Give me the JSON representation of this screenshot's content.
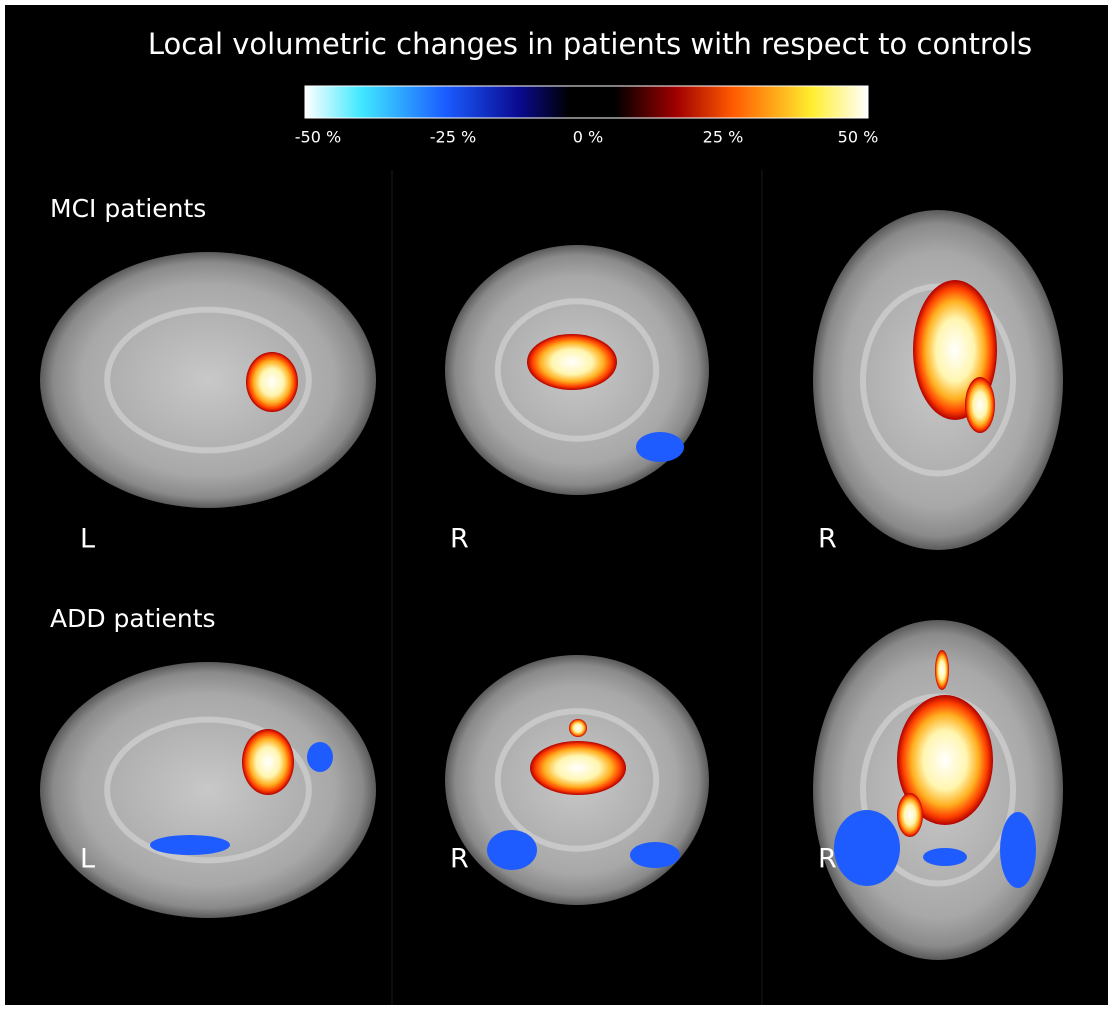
{
  "title": "Local volumetric changes in patients with respect to controls",
  "colorbar": {
    "ticks": [
      "-50 %",
      "-25 %",
      "0 %",
      "25 %",
      "50 %"
    ]
  },
  "rows": [
    {
      "label": "MCI patients",
      "views": [
        "L",
        "R",
        "R"
      ]
    },
    {
      "label": "ADD patients",
      "views": [
        "L",
        "R",
        "R"
      ]
    }
  ]
}
